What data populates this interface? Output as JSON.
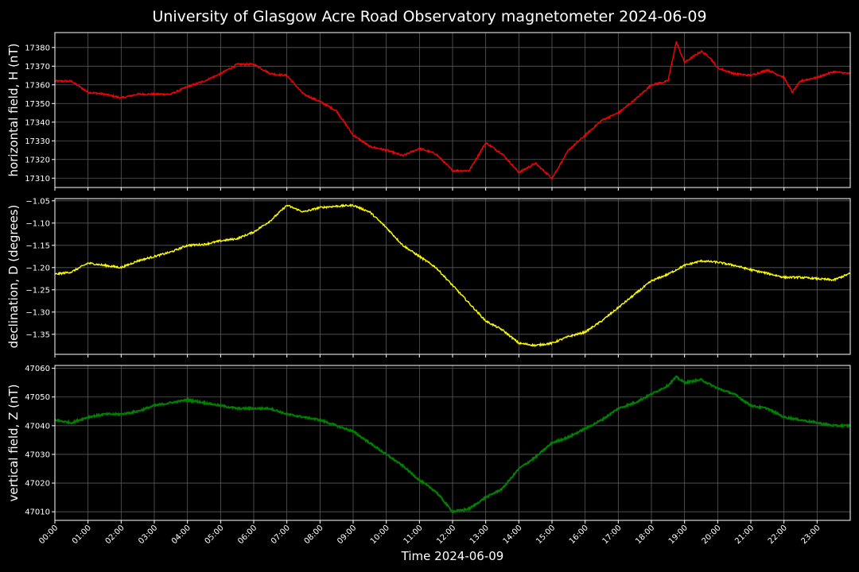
{
  "chart_data": {
    "type": "line",
    "title": "University of Glasgow Acre Road Observatory magnetometer 2024-06-09",
    "xlabel": "Time 2024-06-09",
    "x_ticks": [
      "00:00",
      "01:00",
      "02:00",
      "03:00",
      "04:00",
      "05:00",
      "06:00",
      "07:00",
      "08:00",
      "09:00",
      "10:00",
      "11:00",
      "12:00",
      "13:00",
      "14:00",
      "15:00",
      "16:00",
      "17:00",
      "18:00",
      "19:00",
      "20:00",
      "21:00",
      "22:00",
      "23:00"
    ],
    "xlim_hours": [
      0,
      24
    ],
    "grid": true,
    "panels": [
      {
        "ylabel": "horizontal field, H (nT)",
        "color": "#ff0000",
        "ylim": [
          17305,
          17388
        ],
        "y_ticks": [
          "17310",
          "17320",
          "17330",
          "17340",
          "17350",
          "17360",
          "17370",
          "17380"
        ],
        "tick_values": [
          17310,
          17320,
          17330,
          17340,
          17350,
          17360,
          17370,
          17380
        ],
        "x_hours": [
          0,
          0.5,
          1,
          1.5,
          2,
          2.5,
          3,
          3.5,
          4,
          4.5,
          5,
          5.5,
          6,
          6.5,
          7,
          7.5,
          8,
          8.5,
          9,
          9.5,
          10,
          10.5,
          11,
          11.5,
          12,
          12.5,
          13,
          13.5,
          14,
          14.5,
          15,
          15.5,
          16,
          16.5,
          17,
          17.5,
          18,
          18.5,
          18.75,
          19,
          19.5,
          19.75,
          20,
          20.5,
          21,
          21.5,
          22,
          22.25,
          22.5,
          23,
          23.5,
          24
        ],
        "values": [
          17362,
          17362,
          17356,
          17355,
          17353,
          17355,
          17355,
          17355,
          17359,
          17362,
          17366,
          17371,
          17371,
          17366,
          17365,
          17355,
          17351,
          17346,
          17333,
          17327,
          17325,
          17322,
          17326,
          17323,
          17314,
          17314,
          17329,
          17323,
          17313,
          17318,
          17310,
          17325,
          17333,
          17341,
          17345,
          17352,
          17360,
          17362,
          17383,
          17372,
          17378,
          17375,
          17369,
          17366,
          17365,
          17368,
          17364,
          17356,
          17362,
          17364,
          17367,
          17366
        ]
      },
      {
        "ylabel": "declination, D (degrees)",
        "color": "#ffff00",
        "ylim": [
          -1.395,
          -1.045
        ],
        "y_ticks": [
          "−1.05",
          "−1.10",
          "−1.15",
          "−1.20",
          "−1.25",
          "−1.30",
          "−1.35"
        ],
        "tick_values": [
          -1.05,
          -1.1,
          -1.15,
          -1.2,
          -1.25,
          -1.3,
          -1.35
        ],
        "x_hours": [
          0,
          0.5,
          1,
          1.5,
          2,
          2.5,
          3,
          3.5,
          4,
          4.5,
          5,
          5.5,
          6,
          6.5,
          7,
          7.5,
          8,
          8.5,
          9,
          9.5,
          10,
          10.5,
          11,
          11.5,
          12,
          12.5,
          13,
          13.5,
          14,
          14.5,
          15,
          15.5,
          16,
          16.5,
          17,
          17.5,
          18,
          18.5,
          19,
          19.5,
          20,
          20.5,
          21,
          21.5,
          22,
          22.5,
          23,
          23.5,
          24
        ],
        "values": [
          -1.215,
          -1.21,
          -1.19,
          -1.195,
          -1.2,
          -1.185,
          -1.175,
          -1.165,
          -1.15,
          -1.148,
          -1.14,
          -1.135,
          -1.12,
          -1.095,
          -1.06,
          -1.075,
          -1.065,
          -1.062,
          -1.06,
          -1.075,
          -1.11,
          -1.15,
          -1.175,
          -1.2,
          -1.24,
          -1.28,
          -1.32,
          -1.34,
          -1.37,
          -1.375,
          -1.37,
          -1.355,
          -1.345,
          -1.32,
          -1.29,
          -1.26,
          -1.23,
          -1.215,
          -1.195,
          -1.185,
          -1.188,
          -1.195,
          -1.205,
          -1.213,
          -1.222,
          -1.222,
          -1.225,
          -1.228,
          -1.213
        ]
      },
      {
        "ylabel": "vertical field, Z (nT)",
        "color": "#008000",
        "ylim": [
          47007,
          47061
        ],
        "y_ticks": [
          "47010",
          "47020",
          "47030",
          "47040",
          "47050",
          "47060"
        ],
        "tick_values": [
          47010,
          47020,
          47030,
          47040,
          47050,
          47060
        ],
        "x_hours": [
          0,
          0.5,
          1,
          1.5,
          2,
          2.5,
          3,
          3.5,
          4,
          4.5,
          5,
          5.5,
          6,
          6.5,
          7,
          7.5,
          8,
          8.5,
          9,
          9.5,
          10,
          10.5,
          11,
          11.5,
          12,
          12.5,
          13,
          13.5,
          14,
          14.5,
          15,
          15.5,
          16,
          16.5,
          17,
          17.5,
          18,
          18.5,
          18.75,
          19,
          19.5,
          20,
          20.5,
          21,
          21.5,
          22,
          22.5,
          23,
          23.5,
          24
        ],
        "values": [
          47042,
          47041,
          47043,
          47044,
          47044,
          47045,
          47047,
          47048,
          47049,
          47048,
          47047,
          47046,
          47046,
          47046,
          47044,
          47043,
          47042,
          47040,
          47038,
          47034,
          47030,
          47026,
          47021,
          47017,
          47010,
          47011,
          47015,
          47018,
          47025,
          47029,
          47034,
          47036,
          47039,
          47042,
          47046,
          47048,
          47051,
          47054,
          47057,
          47055,
          47056,
          47053,
          47051,
          47047,
          47046,
          47043,
          47042,
          47041,
          47040,
          47040
        ]
      }
    ]
  }
}
